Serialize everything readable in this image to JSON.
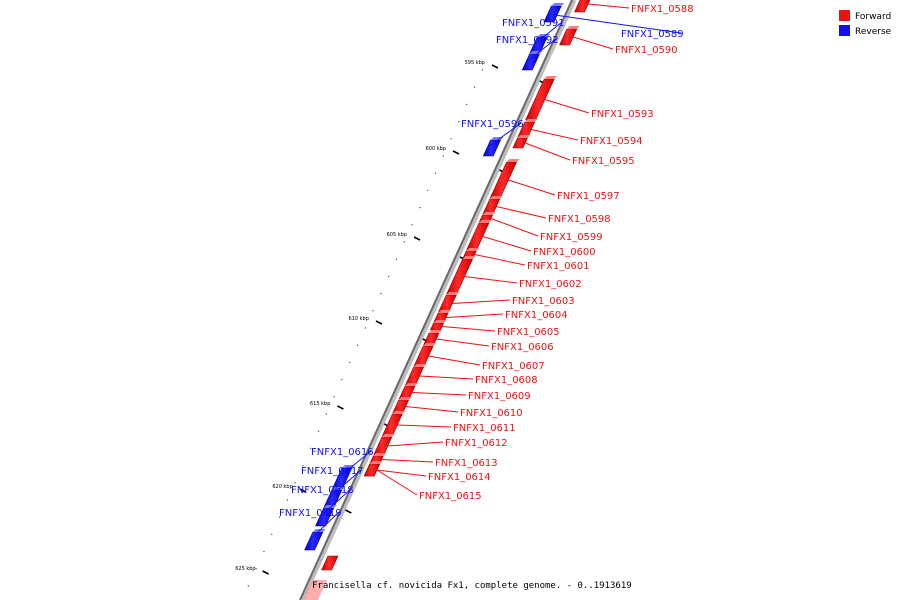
{
  "caption": "Francisella cf. novicida Fx1, complete genome. - 0..1913619",
  "legend": [
    {
      "label": "Forward",
      "color": "#ee1111"
    },
    {
      "label": "Reverse",
      "color": "#1111ee"
    }
  ],
  "ticks": [
    "595 kbp",
    "600 kbp",
    "605 kbp",
    "610 kbp",
    "615 kbp",
    "620 kbp",
    "625 kbp"
  ],
  "genes": [
    {
      "name": "FNFX1_0588",
      "strand": "forward"
    },
    {
      "name": "FNFX1_0589",
      "strand": "reverse"
    },
    {
      "name": "FNFX1_0590",
      "strand": "forward"
    },
    {
      "name": "FNFX1_0591",
      "strand": "reverse"
    },
    {
      "name": "FNFX1_0592",
      "strand": "reverse"
    },
    {
      "name": "FNFX1_0593",
      "strand": "forward"
    },
    {
      "name": "FNFX1_0594",
      "strand": "forward"
    },
    {
      "name": "FNFX1_0595",
      "strand": "forward"
    },
    {
      "name": "FNFX1_0596",
      "strand": "reverse"
    },
    {
      "name": "FNFX1_0597",
      "strand": "forward"
    },
    {
      "name": "FNFX1_0598",
      "strand": "forward"
    },
    {
      "name": "FNFX1_0599",
      "strand": "forward"
    },
    {
      "name": "FNFX1_0600",
      "strand": "forward"
    },
    {
      "name": "FNFX1_0601",
      "strand": "forward"
    },
    {
      "name": "FNFX1_0602",
      "strand": "forward"
    },
    {
      "name": "FNFX1_0603",
      "strand": "forward"
    },
    {
      "name": "FNFX1_0604",
      "strand": "forward"
    },
    {
      "name": "FNFX1_0605",
      "strand": "forward"
    },
    {
      "name": "FNFX1_0606",
      "strand": "forward"
    },
    {
      "name": "FNFX1_0607",
      "strand": "forward"
    },
    {
      "name": "FNFX1_0608",
      "strand": "forward"
    },
    {
      "name": "FNFX1_0609",
      "strand": "forward"
    },
    {
      "name": "FNFX1_0610",
      "strand": "forward"
    },
    {
      "name": "FNFX1_0611",
      "strand": "forward"
    },
    {
      "name": "FNFX1_0612",
      "strand": "forward"
    },
    {
      "name": "FNFX1_0613",
      "strand": "forward"
    },
    {
      "name": "FNFX1_0614",
      "strand": "forward"
    },
    {
      "name": "FNFX1_0615",
      "strand": "forward"
    },
    {
      "name": "FNFX1_0616",
      "strand": "reverse"
    },
    {
      "name": "FNFX1_0617",
      "strand": "reverse"
    },
    {
      "name": "FNFX1_0618",
      "strand": "reverse"
    },
    {
      "name": "FNFX1_0619",
      "strand": "reverse"
    }
  ]
}
